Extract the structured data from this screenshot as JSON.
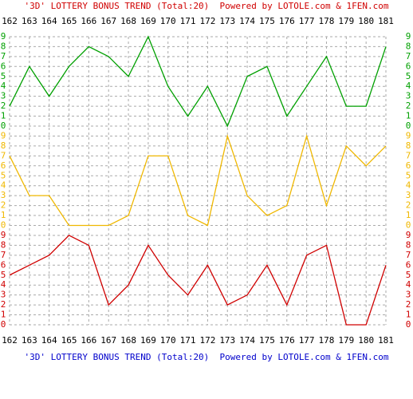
{
  "chart_data": {
    "type": "line",
    "title": "'3D' LOTTERY BONUS TREND (Total:20)  Powered by LOTOLE.com & 1FEN.com",
    "footer": "'3D' LOTTERY BONUS TREND (Total:20)  Powered by LOTOLE.com & 1FEN.com",
    "categories": [
      "162",
      "163",
      "164",
      "165",
      "166",
      "167",
      "168",
      "169",
      "170",
      "171",
      "172",
      "173",
      "174",
      "175",
      "176",
      "177",
      "178",
      "179",
      "180",
      "181"
    ],
    "ylim": [
      0,
      9
    ],
    "yticks": [
      0,
      1,
      2,
      3,
      4,
      5,
      6,
      7,
      8,
      9
    ],
    "grid": true,
    "series": [
      {
        "color": "#00a000",
        "values": [
          2,
          6,
          3,
          6,
          8,
          7,
          5,
          9,
          4,
          1,
          4,
          0,
          5,
          6,
          1,
          4,
          7,
          2,
          2,
          8
        ]
      },
      {
        "color": "#f0b800",
        "values": [
          7,
          3,
          3,
          0,
          0,
          0,
          1,
          7,
          7,
          1,
          0,
          9,
          3,
          1,
          2,
          9,
          2,
          8,
          6,
          8
        ]
      },
      {
        "color": "#d00000",
        "values": [
          5,
          6,
          7,
          9,
          8,
          2,
          4,
          8,
          5,
          3,
          6,
          2,
          3,
          6,
          2,
          7,
          8,
          0,
          0,
          6
        ]
      }
    ]
  }
}
